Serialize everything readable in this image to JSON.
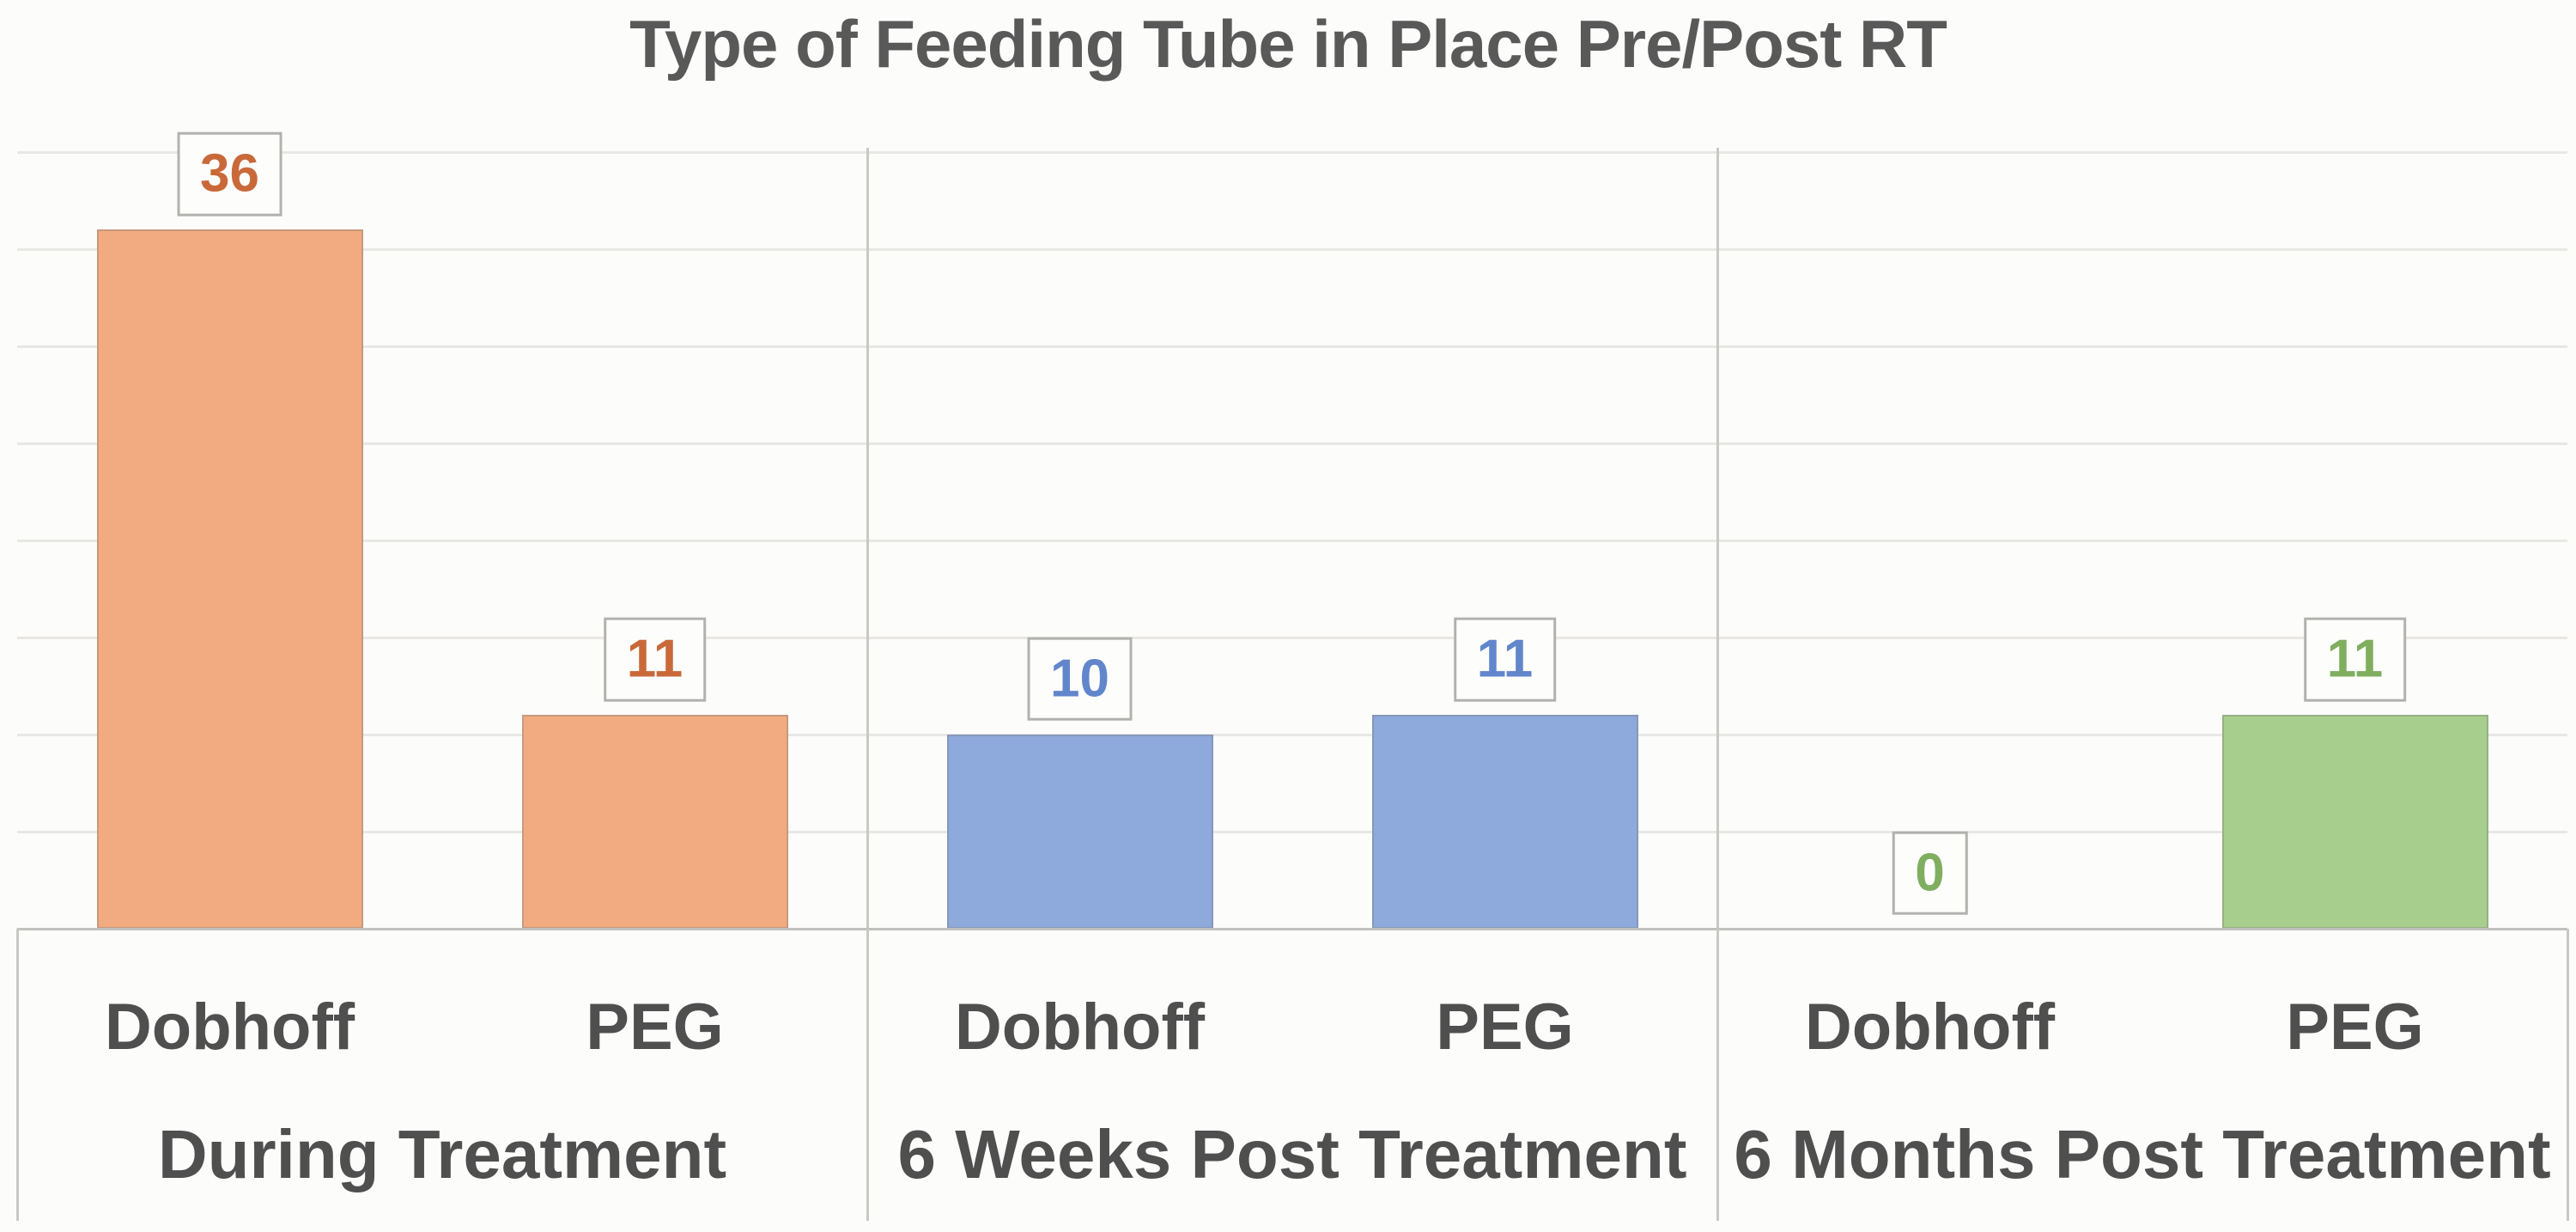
{
  "chart_data": {
    "type": "bar",
    "title": "Type of Feeding Tube in Place Pre/Post RT",
    "ylabel": "",
    "xlabel": "",
    "ylim": [
      0,
      40
    ],
    "gridline_step": 5,
    "grid": "horizontal",
    "legend": "none",
    "title_color": "#595959",
    "axis_label_color": "#4f4f4f",
    "categories_per_group": [
      "Dobhoff",
      "PEG"
    ],
    "groups": [
      {
        "label": "During Treatment",
        "bar_color": "#f2ab80",
        "value_color": "#c9693a",
        "bars": [
          {
            "category": "Dobhoff",
            "value": 36
          },
          {
            "category": "PEG",
            "value": 11
          }
        ]
      },
      {
        "label": "6 Weeks Post Treatment",
        "bar_color": "#8ea9db",
        "value_color": "#6286cb",
        "bars": [
          {
            "category": "Dobhoff",
            "value": 10
          },
          {
            "category": "PEG",
            "value": 11
          }
        ]
      },
      {
        "label": "6 Months Post Treatment",
        "bar_color": "#a8ce8d",
        "value_color": "#7fae5f",
        "bars": [
          {
            "category": "Dobhoff",
            "value": 0
          },
          {
            "category": "PEG",
            "value": 11
          }
        ]
      }
    ]
  }
}
